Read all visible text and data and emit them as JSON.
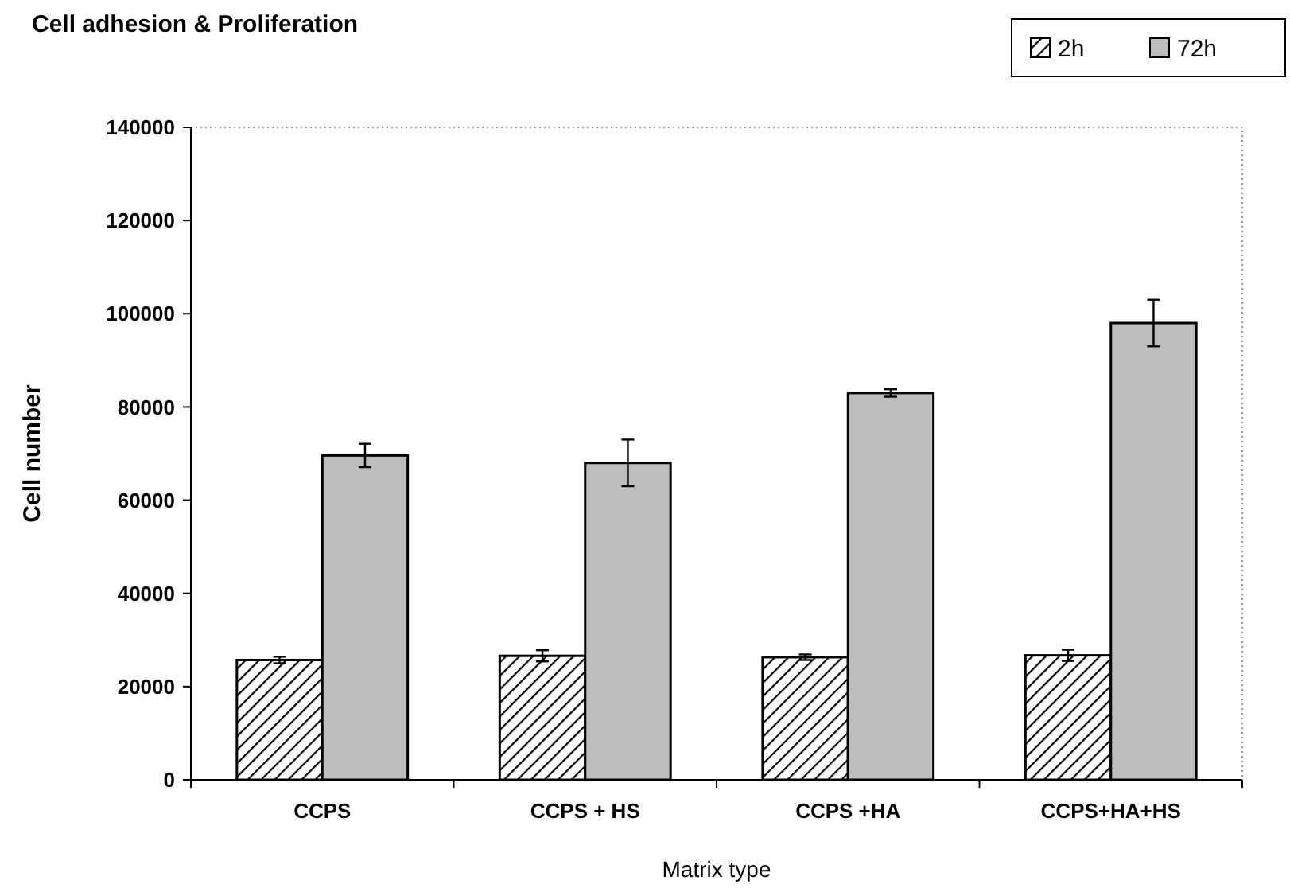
{
  "chart_data": {
    "type": "bar",
    "title": "Cell adhesion & Proliferation",
    "xlabel": "Matrix type",
    "ylabel": "Cell number",
    "categories": [
      "CCPS",
      "CCPS + HS",
      "CCPS +HA",
      "CCPS+HA+HS"
    ],
    "series": [
      {
        "name": "2h",
        "color": "#000000",
        "values": [
          25700,
          26600,
          26300,
          26700
        ],
        "errors": [
          700,
          1200,
          600,
          1200
        ]
      },
      {
        "name": "72h",
        "color": "#bdbdbd",
        "values": [
          69600,
          68000,
          83000,
          98000
        ],
        "errors": [
          2500,
          5000,
          800,
          5000
        ]
      }
    ],
    "ylim": [
      0,
      140000
    ],
    "yticks": [
      0,
      20000,
      40000,
      60000,
      80000,
      100000,
      120000,
      140000
    ],
    "legend": "top right",
    "grid": false
  }
}
